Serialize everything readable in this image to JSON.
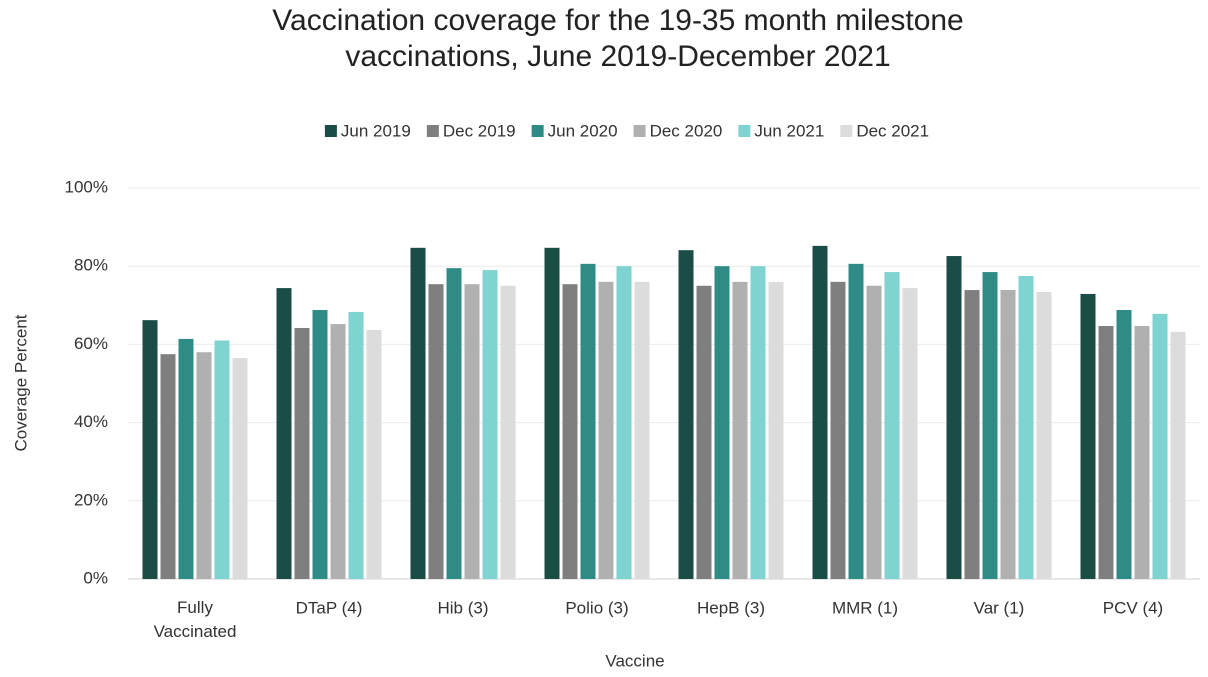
{
  "chart_data": {
    "type": "bar",
    "title": "Vaccination coverage for the 19-35 month milestone vaccinations, June 2019-December 2021",
    "x_label": "Vaccine",
    "y_label": "Coverage Percent",
    "categories": [
      "Fully Vaccinated",
      "DTaP (4)",
      "Hib (3)",
      "Polio (3)",
      "HepB (3)",
      "MMR (1)",
      "Var (1)",
      "PCV (4)"
    ],
    "series": [
      {
        "name": "Jun 2019",
        "color": "#1b4d47",
        "values": [
          66.2,
          74.4,
          84.7,
          84.7,
          84.1,
          85.2,
          82.6,
          72.9
        ]
      },
      {
        "name": "Dec 2019",
        "color": "#7f7f7f",
        "values": [
          57.5,
          64.2,
          75.4,
          75.4,
          75.0,
          76.0,
          73.9,
          64.7
        ]
      },
      {
        "name": "Jun 2020",
        "color": "#2e8b86",
        "values": [
          61.4,
          68.8,
          79.5,
          80.6,
          80.0,
          80.6,
          78.5,
          68.8
        ]
      },
      {
        "name": "Dec 2020",
        "color": "#b0b0b0",
        "values": [
          58.0,
          65.2,
          75.4,
          76.0,
          76.0,
          75.0,
          73.9,
          64.7
        ]
      },
      {
        "name": "Jun 2021",
        "color": "#7fd3d0",
        "values": [
          61.0,
          68.3,
          79.0,
          80.0,
          80.0,
          78.5,
          77.5,
          67.8
        ]
      },
      {
        "name": "Dec 2021",
        "color": "#dcdcdc",
        "values": [
          56.5,
          63.7,
          75.0,
          76.0,
          76.0,
          74.4,
          73.4,
          63.2
        ]
      }
    ],
    "ylim": [
      0,
      100
    ],
    "yticks": [
      {
        "value": 0,
        "label": "0%"
      },
      {
        "value": 20,
        "label": "20%"
      },
      {
        "value": 40,
        "label": "40%"
      },
      {
        "value": 60,
        "label": "60%"
      },
      {
        "value": 80,
        "label": "80%"
      },
      {
        "value": 100,
        "label": "100%"
      }
    ],
    "grid": true,
    "legend": "top"
  }
}
